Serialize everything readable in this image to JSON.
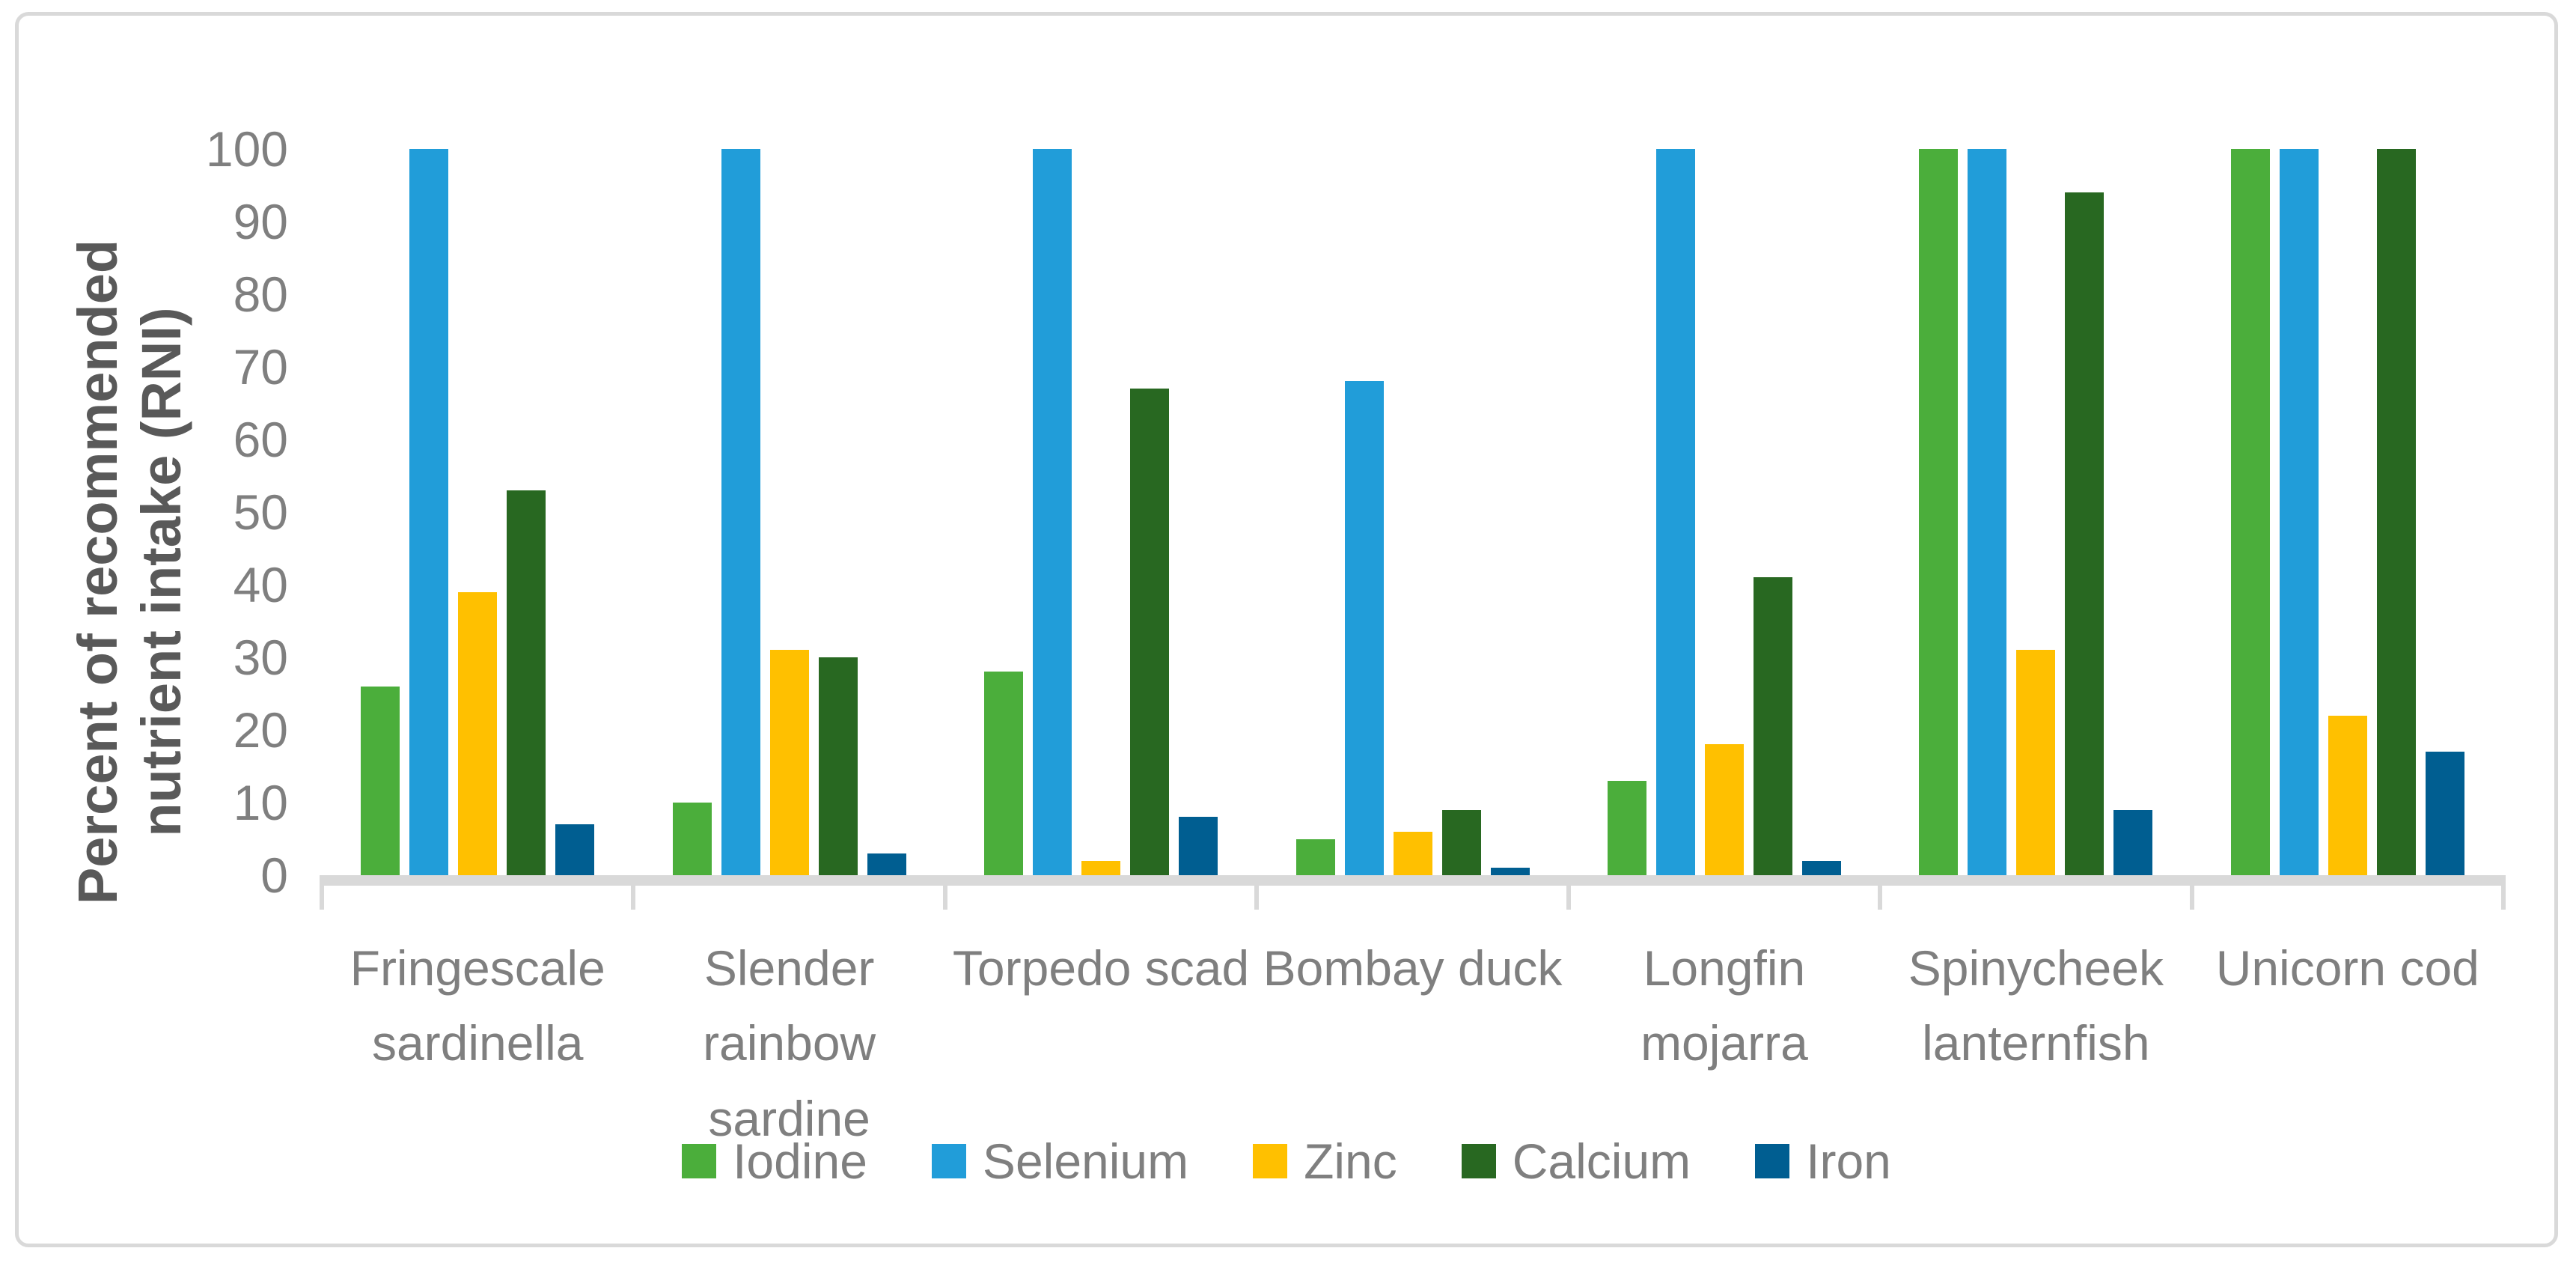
{
  "chart_data": {
    "type": "bar",
    "title": "",
    "xlabel": "",
    "ylabel": "Percent of recommended nutrient intake (RNI)",
    "ylim": [
      0,
      100
    ],
    "yticks": [
      0,
      10,
      20,
      30,
      40,
      50,
      60,
      70,
      80,
      90,
      100
    ],
    "grid": false,
    "legend_position": "bottom",
    "axis_color": "#d9d9d9",
    "text_color": "#7f7f7f",
    "title_color": "#595959",
    "categories": [
      "Fringescale sardinella",
      "Slender rainbow sardine",
      "Torpedo scad",
      "Bombay duck",
      "Longfin mojarra",
      "Spinycheek lanternfish",
      "Unicorn cod"
    ],
    "series": [
      {
        "name": "Iodine",
        "color": "#4bae3b",
        "values": [
          26,
          10,
          28,
          5,
          13,
          100,
          100
        ]
      },
      {
        "name": "Selenium",
        "color": "#219dd9",
        "values": [
          100,
          100,
          100,
          68,
          100,
          100,
          100
        ]
      },
      {
        "name": "Zinc",
        "color": "#ffc000",
        "values": [
          39,
          31,
          2,
          6,
          18,
          31,
          22
        ]
      },
      {
        "name": "Calcium",
        "color": "#286821",
        "values": [
          53,
          30,
          67,
          9,
          41,
          94,
          100
        ]
      },
      {
        "name": "Iron",
        "color": "#005e91",
        "values": [
          7,
          3,
          8,
          1,
          2,
          9,
          17
        ]
      }
    ]
  }
}
